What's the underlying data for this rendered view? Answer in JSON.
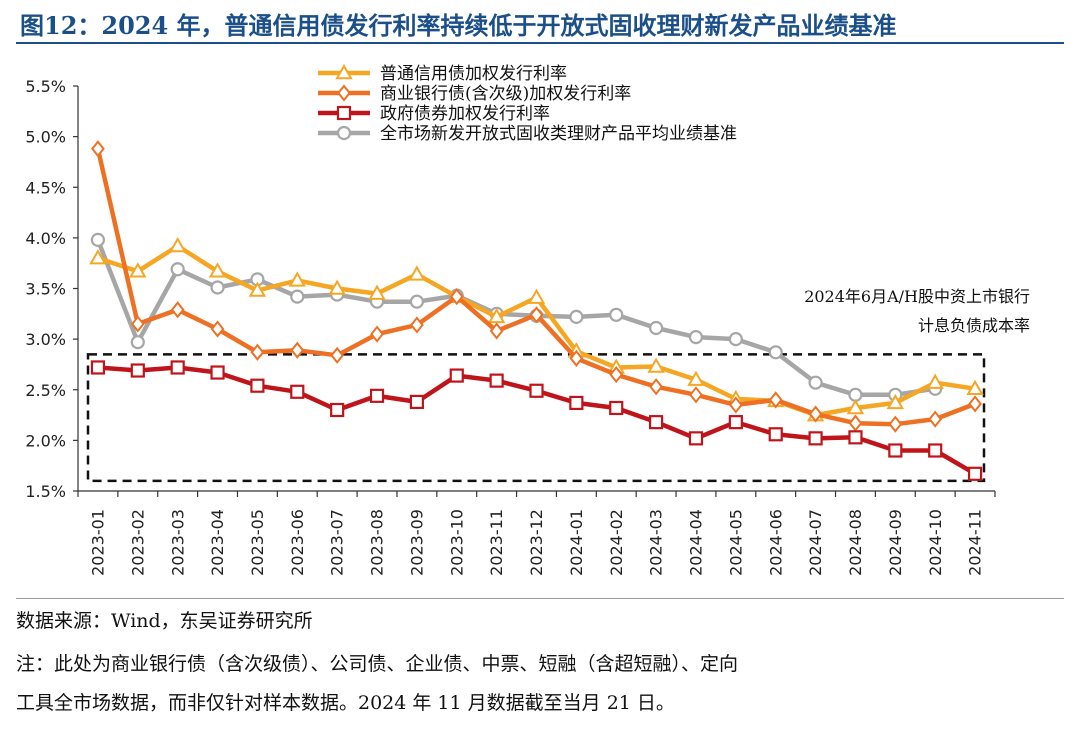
{
  "figure": {
    "title": "图12：2024 年，普通信用债发行利率持续低于开放式固收理财新发产品业绩基准"
  },
  "chart_data": {
    "type": "line",
    "categories": [
      "2023-01",
      "2023-02",
      "2023-03",
      "2023-04",
      "2023-05",
      "2023-06",
      "2023-07",
      "2023-08",
      "2023-09",
      "2023-10",
      "2023-11",
      "2023-12",
      "2024-01",
      "2024-02",
      "2024-03",
      "2024-04",
      "2024-05",
      "2024-06",
      "2024-07",
      "2024-08",
      "2024-09",
      "2024-10",
      "2024-11"
    ],
    "ylim": [
      1.5,
      5.5
    ],
    "yticks": [
      "5.5%",
      "5.0%",
      "4.5%",
      "4.0%",
      "3.5%",
      "3.0%",
      "2.5%",
      "2.0%",
      "1.5%"
    ],
    "series": [
      {
        "name": "普通信用债加权发行利率",
        "color": "#f5a623",
        "marker": "triangle",
        "values": [
          3.8,
          3.67,
          3.92,
          3.67,
          3.48,
          3.58,
          3.5,
          3.45,
          3.64,
          3.42,
          3.22,
          3.41,
          2.88,
          2.72,
          2.73,
          2.6,
          2.41,
          2.39,
          2.25,
          2.32,
          2.37,
          2.57,
          2.51
        ]
      },
      {
        "name": "商业银行债(含次级)加权发行利率",
        "color": "#ee7023",
        "marker": "diamond",
        "values": [
          4.88,
          3.15,
          3.29,
          3.1,
          2.87,
          2.89,
          2.84,
          3.05,
          3.14,
          3.42,
          3.08,
          3.24,
          2.81,
          2.65,
          2.53,
          2.45,
          2.35,
          2.4,
          2.26,
          2.17,
          2.16,
          2.21,
          2.36
        ]
      },
      {
        "name": "政府债券加权发行利率",
        "color": "#c0141b",
        "marker": "square",
        "values": [
          2.72,
          2.69,
          2.72,
          2.67,
          2.54,
          2.48,
          2.3,
          2.44,
          2.38,
          2.64,
          2.59,
          2.49,
          2.37,
          2.32,
          2.18,
          2.02,
          2.18,
          2.06,
          2.02,
          2.03,
          1.9,
          1.9,
          1.67
        ]
      },
      {
        "name": "全市场新发开放式固收类理财产品平均业绩基准",
        "color": "#a6a6a6",
        "marker": "circle",
        "values": [
          3.98,
          2.97,
          3.69,
          3.51,
          3.59,
          3.42,
          3.44,
          3.37,
          3.37,
          3.43,
          3.25,
          3.23,
          3.22,
          3.24,
          3.11,
          3.02,
          3.0,
          2.87,
          2.57,
          2.45,
          2.45,
          2.51,
          null
        ]
      }
    ],
    "annotation": {
      "lines": [
        "2024年6月A/H股中资上市银行",
        "计息负债成本率"
      ],
      "range": [
        1.6,
        2.85
      ]
    }
  },
  "footer": {
    "source": "数据来源：Wind，东吴证券研究所",
    "note_line1": "注：此处为商业银行债（含次级债）、公司债、企业债、中票、短融（含超短融）、定向",
    "note_line2": "工具全市场数据，而非仅针对样本数据。2024 年 11 月数据截至当月 21 日。"
  }
}
